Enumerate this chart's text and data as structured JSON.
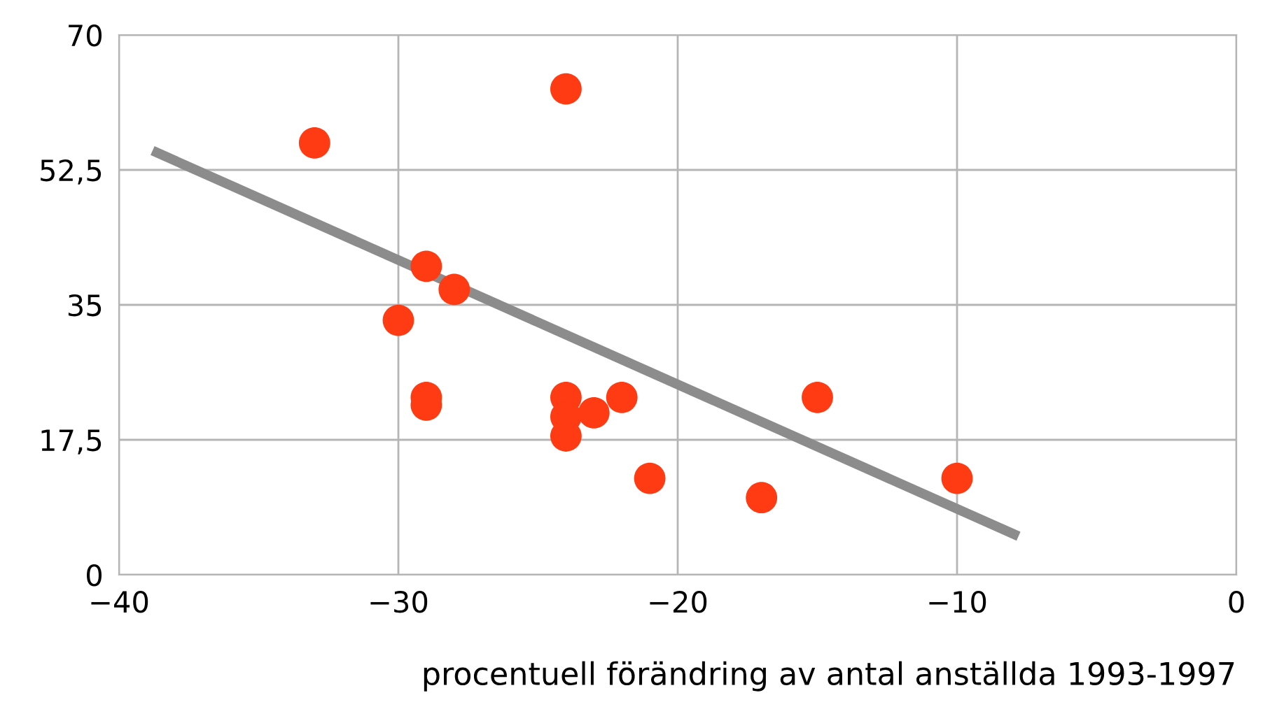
{
  "chart_data": {
    "type": "scatter",
    "xlabel": "procentuell förändring av antal anställda 1993-1997",
    "xlim": [
      -40,
      0
    ],
    "xticks": [
      {
        "value": -40,
        "label": "−40"
      },
      {
        "value": -30,
        "label": "−30"
      },
      {
        "value": -20,
        "label": "−20"
      },
      {
        "value": -10,
        "label": "−10"
      },
      0
    ],
    "ylim": [
      0,
      70
    ],
    "yticks": [
      0,
      {
        "value": 17.5,
        "label": "17,5"
      },
      35,
      {
        "value": 52.5,
        "label": "52,5"
      },
      70
    ],
    "grid": true,
    "series": [
      {
        "marker": "circle",
        "color": "#ff3b14",
        "x": [
          -33,
          -24,
          -29,
          -28,
          -30,
          -29,
          -29,
          -24,
          -24,
          -24,
          -23,
          -22,
          -21,
          -17,
          -15,
          -10
        ],
        "values": [
          56,
          63,
          40,
          37,
          33,
          23,
          22,
          23,
          20.5,
          18,
          21,
          23,
          12.5,
          10,
          23,
          12.5
        ]
      },
      {
        "type": "line",
        "color": "#8c8c8c",
        "x": [
          -38.8,
          -7.8
        ],
        "values": [
          55,
          5
        ]
      }
    ]
  }
}
